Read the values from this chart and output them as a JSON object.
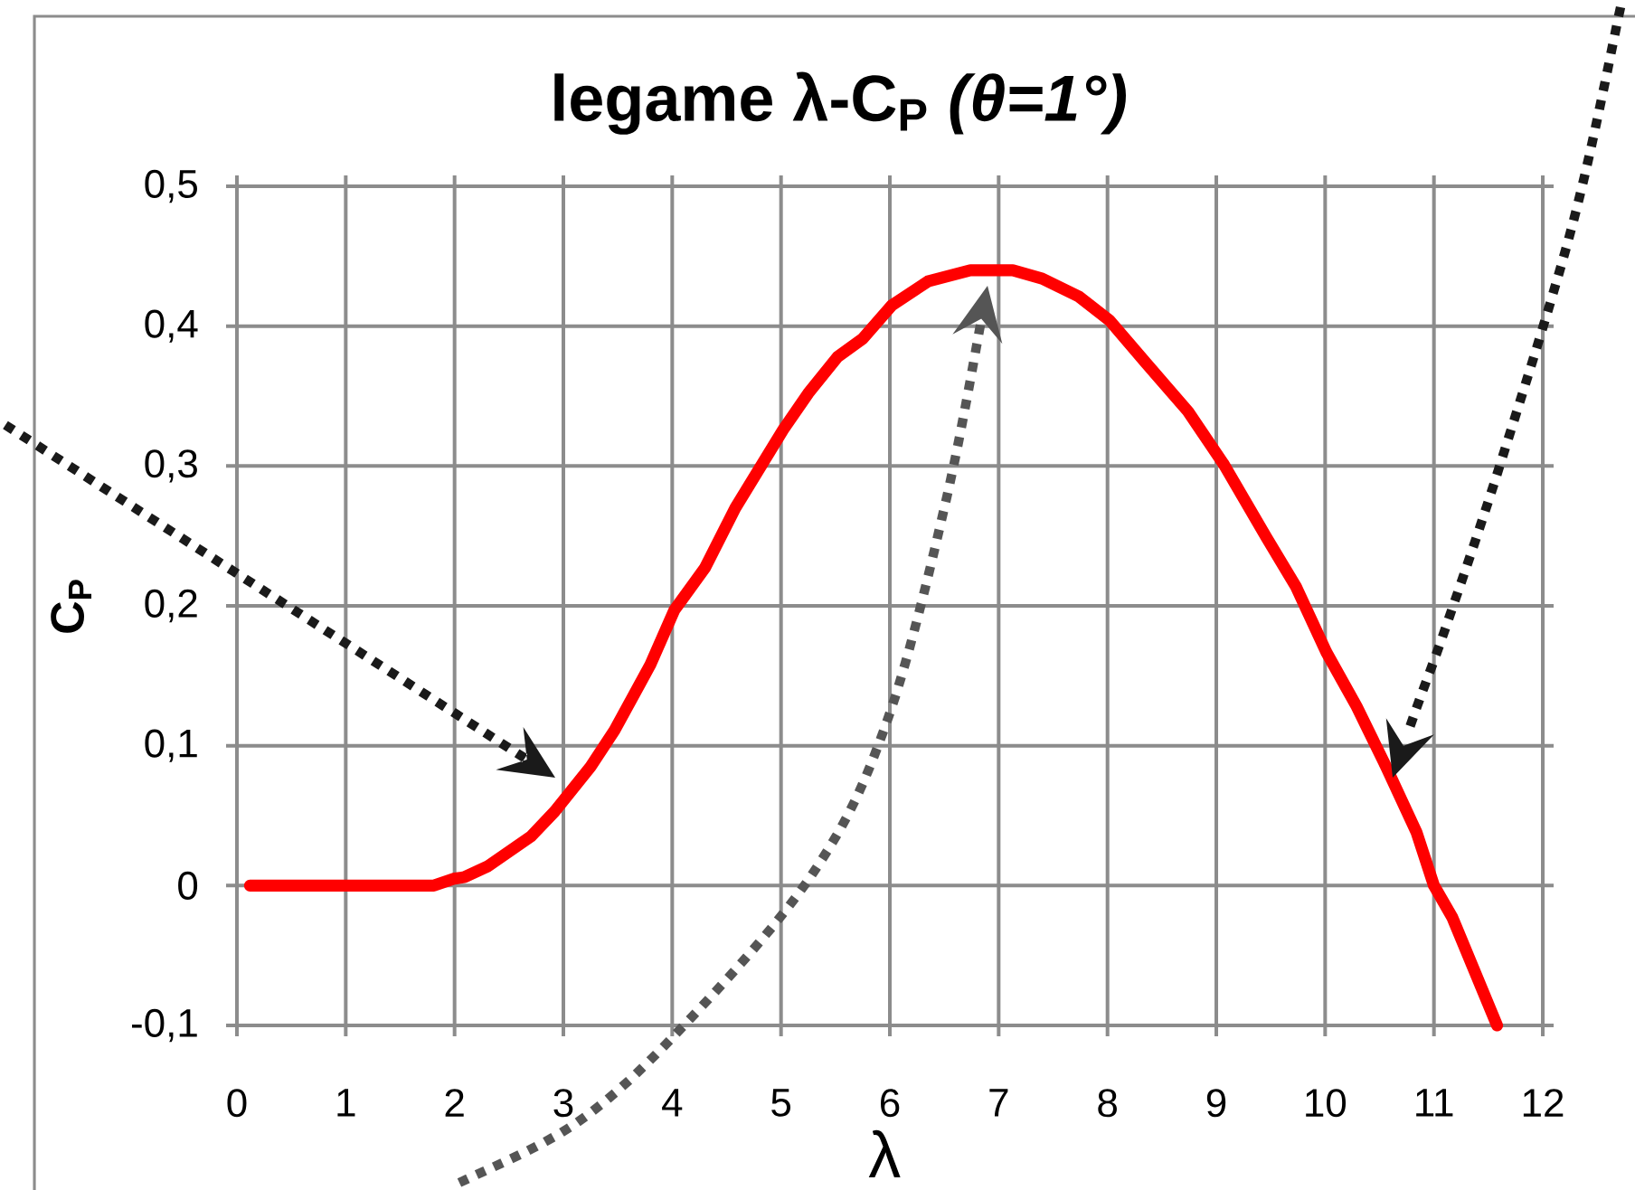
{
  "chart_data": {
    "type": "line",
    "title": "legame λ-C$_{P}$ *(θ=1°)*",
    "xlabel": "λ",
    "ylabel": "C$_{P}$",
    "x": [
      0.12,
      1.81,
      2.0,
      2.09,
      2.31,
      2.7,
      2.92,
      3.25,
      3.47,
      3.8,
      4.02,
      4.3,
      4.58,
      5.02,
      5.25,
      5.52,
      5.75,
      6.02,
      6.35,
      6.74,
      7.13,
      7.4,
      7.74,
      8.02,
      8.35,
      8.74,
      9.07,
      9.46,
      9.73,
      10.01,
      10.29,
      10.56,
      10.84,
      11.0,
      11.17,
      11.58
    ],
    "series": [
      {
        "color": "#ff0000",
        "values": [
          0,
          0,
          0.005,
          0.006,
          0.014,
          0.035,
          0.053,
          0.085,
          0.111,
          0.158,
          0.197,
          0.227,
          0.27,
          0.326,
          0.352,
          0.378,
          0.391,
          0.415,
          0.432,
          0.44,
          0.44,
          0.434,
          0.421,
          0.404,
          0.374,
          0.339,
          0.301,
          0.249,
          0.214,
          0.167,
          0.128,
          0.085,
          0.038,
          0,
          -0.023,
          -0.1
        ]
      }
    ],
    "xlim": [
      0,
      12
    ],
    "ylim": [
      -0.1,
      0.5
    ],
    "xticks": [
      0,
      1,
      2,
      3,
      4,
      5,
      6,
      7,
      8,
      9,
      10,
      11,
      12
    ],
    "yticks": [
      {
        "value": -0.1,
        "label": "-0,1"
      },
      0,
      {
        "value": 0.1,
        "label": "0,1"
      },
      {
        "value": 0.2,
        "label": "0,2"
      },
      {
        "value": 0.3,
        "label": "0,3"
      },
      {
        "value": 0.4,
        "label": "0,4"
      },
      {
        "value": 0.5,
        "label": "0,5"
      }
    ],
    "grid": true,
    "marker": "none",
    "line_style": "solid"
  }
}
